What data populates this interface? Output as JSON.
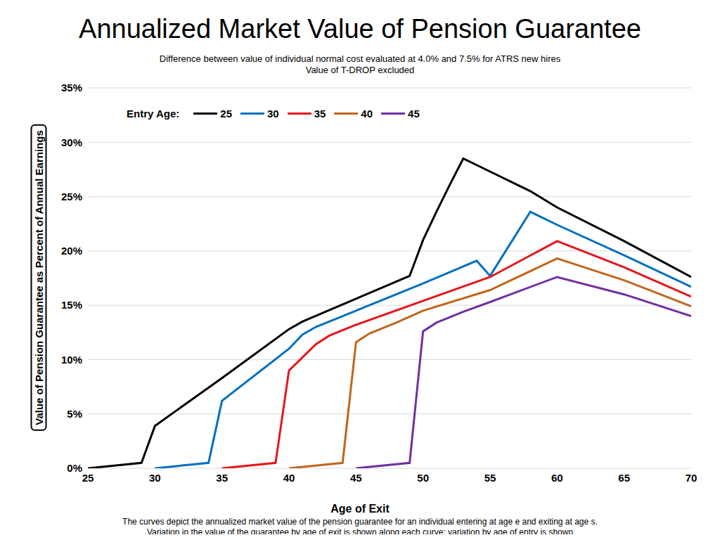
{
  "chart_data": {
    "type": "line",
    "title": "Annualized Market Value of Pension Guarantee",
    "subtitle": [
      "Difference between value of individual normal cost evaluated at 4.0% and 7.5% for ATRS new hires",
      "Value of T-DROP excluded"
    ],
    "x_label": "Age of Exit",
    "y_label": "Value of Pension Guarantee as Percent of Annual Earnings",
    "caption": [
      "The curves depict the annualized market value of the pension guarantee for an individual entering at age e and exiting at age s.",
      "Variation in the value of the guarantee by age of exit is shown along each curve; variation by age of entry is shown"
    ],
    "legend_title": "Entry Age:",
    "legend": "top-left",
    "grid": true,
    "xlim": [
      25,
      70
    ],
    "xticks": [
      25,
      30,
      35,
      40,
      45,
      50,
      55,
      60,
      65,
      70
    ],
    "ylim": [
      0,
      35
    ],
    "yticks": [
      {
        "value": 0,
        "label": "0%"
      },
      {
        "value": 5,
        "label": "5%"
      },
      {
        "value": 10,
        "label": "10%"
      },
      {
        "value": 15,
        "label": "15%"
      },
      {
        "value": 20,
        "label": "20%"
      },
      {
        "value": 25,
        "label": "25%"
      },
      {
        "value": 30,
        "label": "30%"
      },
      {
        "value": 35,
        "label": "35%"
      }
    ],
    "series": [
      {
        "name": "25",
        "color": "#000000",
        "x": [
          25,
          29,
          30,
          35,
          40,
          41,
          45,
          49,
          50,
          51,
          52,
          53,
          55,
          58,
          60,
          65,
          70
        ],
        "values": [
          0,
          0.5,
          3.9,
          8.3,
          12.8,
          13.5,
          15.6,
          17.7,
          21.0,
          23.6,
          26.1,
          28.5,
          27.3,
          25.5,
          24.0,
          20.9,
          17.6
        ]
      },
      {
        "name": "30",
        "color": "#0070c0",
        "x": [
          30,
          34,
          35,
          40,
          41,
          42,
          45,
          50,
          54,
          55,
          58,
          60,
          65,
          70
        ],
        "values": [
          0,
          0.5,
          6.2,
          11.0,
          12.3,
          13.0,
          14.5,
          17.0,
          19.1,
          17.7,
          23.6,
          22.4,
          19.6,
          16.7
        ]
      },
      {
        "name": "35",
        "color": "#e8141b",
        "x": [
          35,
          39,
          40,
          41,
          42,
          43,
          45,
          50,
          55,
          60,
          65,
          70
        ],
        "values": [
          0,
          0.5,
          9.0,
          10.2,
          11.4,
          12.2,
          13.2,
          15.4,
          17.6,
          20.9,
          18.5,
          15.8
        ]
      },
      {
        "name": "40",
        "color": "#c0651c",
        "x": [
          40,
          44,
          45,
          46,
          48,
          50,
          55,
          60,
          65,
          70
        ],
        "values": [
          0,
          0.5,
          11.6,
          12.4,
          13.4,
          14.5,
          16.4,
          19.3,
          17.3,
          14.9
        ]
      },
      {
        "name": "45",
        "color": "#7030a0",
        "x": [
          45,
          49,
          50,
          51,
          53,
          55,
          60,
          65,
          70
        ],
        "values": [
          0,
          0.5,
          12.6,
          13.4,
          14.4,
          15.3,
          17.6,
          16.0,
          14.0
        ]
      }
    ]
  }
}
